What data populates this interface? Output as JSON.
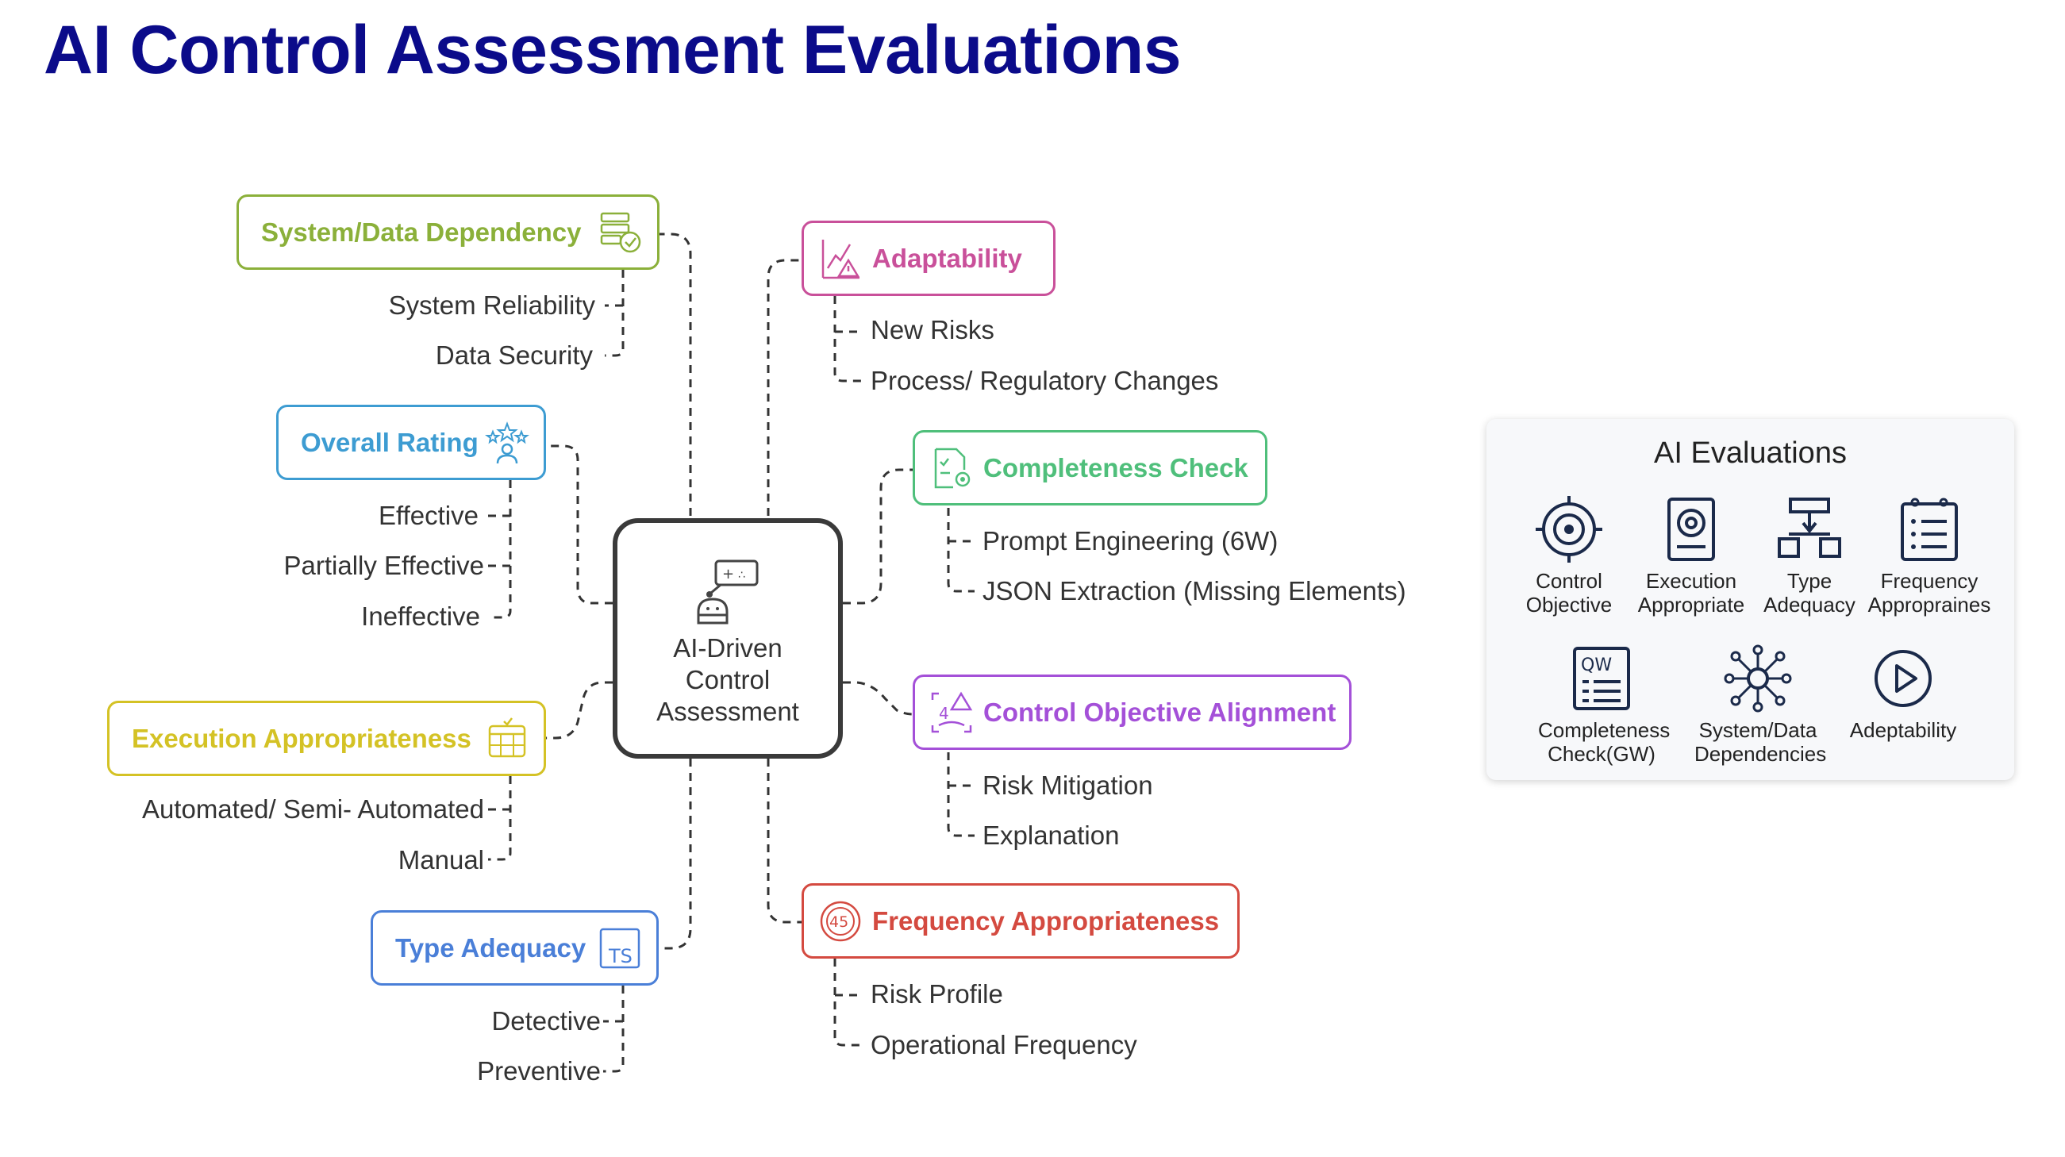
{
  "title": "AI Control Assessment Evaluations",
  "center": {
    "label": "AI-Driven\nControl\nAssessment",
    "icon": "robot-control-icon"
  },
  "categories": [
    {
      "id": "system-data-dependency",
      "label": "System/Data Dependency",
      "color": "#8bb03a",
      "icon": "server-check-icon",
      "items": [
        "System Reliability",
        "Data Security"
      ]
    },
    {
      "id": "overall-rating",
      "label": "Overall Rating",
      "color": "#3d9cd2",
      "icon": "star-rating-icon",
      "items": [
        "Effective",
        "Partially Effective",
        "Ineffective"
      ]
    },
    {
      "id": "execution-appropriateness",
      "label": "Execution Appropriateness",
      "color": "#d4c225",
      "icon": "calendar-icon",
      "items": [
        "Automated/ Semi- Automated",
        "Manual"
      ]
    },
    {
      "id": "type-adequacy",
      "label": "Type Adequacy",
      "color": "#4a7fd8",
      "icon": "typescript-icon",
      "items": [
        "Detective",
        "Preventive"
      ]
    },
    {
      "id": "adaptability",
      "label": "Adaptability",
      "color": "#c9509a",
      "icon": "trend-warning-icon",
      "items": [
        "New Risks",
        "Process/ Regulatory Changes"
      ]
    },
    {
      "id": "completeness-check",
      "label": "Completeness Check",
      "color": "#4fbf7b",
      "icon": "document-gear-icon",
      "items": [
        "Prompt Engineering (6W)",
        "JSON Extraction (Missing Elements)"
      ]
    },
    {
      "id": "control-objective-alignment",
      "label": "Control Objective Alignment",
      "color": "#a450d8",
      "icon": "alignment-warning-icon",
      "items": [
        "Risk Mitigation",
        "Explanation"
      ]
    },
    {
      "id": "frequency-appropriateness",
      "label": "Frequency Appropriateness",
      "color": "#d44a40",
      "icon": "timer-45-icon",
      "items": [
        "Risk Profile",
        "Operational Frequency"
      ]
    }
  ],
  "panel": {
    "title": "AI Evaluations",
    "items": [
      {
        "label": "Control\nObjective",
        "icon": "target-icon"
      },
      {
        "label": "Execution\nAppropriate",
        "icon": "document-target-icon"
      },
      {
        "label": "Type\nAdequacy",
        "icon": "flowchart-icon"
      },
      {
        "label": "Frequency\nAppropraines",
        "icon": "checklist-clipboard-icon"
      },
      {
        "label": "Completeness\nCheck(GW)",
        "icon": "qw-document-icon"
      },
      {
        "label": "System/Data\nDependencies",
        "icon": "network-hub-icon"
      },
      {
        "label": "Adeptability",
        "icon": "play-circle-icon"
      }
    ]
  }
}
